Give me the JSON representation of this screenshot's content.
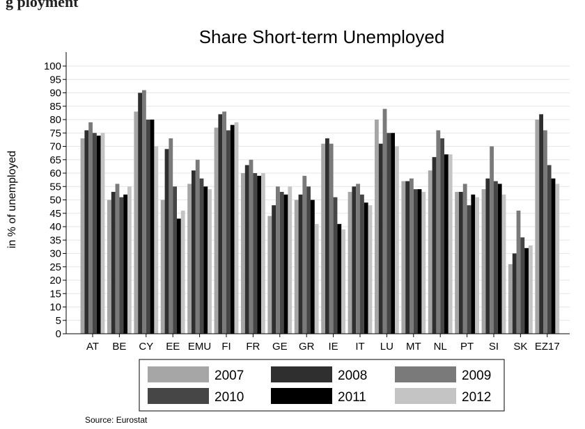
{
  "header_fragment": "g                                    ployment",
  "chart_data": {
    "type": "bar",
    "title": "Share Short-term Unemployed",
    "xlabel": "",
    "ylabel": "in % of unemployed",
    "ylim": [
      0,
      100
    ],
    "yticks": [
      0,
      5,
      10,
      15,
      20,
      25,
      30,
      35,
      40,
      45,
      50,
      55,
      60,
      65,
      70,
      75,
      80,
      85,
      90,
      95,
      100
    ],
    "grid": true,
    "legend_placement": "bottom",
    "categories": [
      "AT",
      "BE",
      "CY",
      "EE",
      "EMU",
      "FI",
      "FR",
      "GE",
      "GR",
      "IE",
      "IT",
      "LU",
      "MT",
      "NL",
      "PT",
      "SI",
      "SK",
      "EZ17"
    ],
    "series": [
      {
        "name": "2007",
        "color": "#a6a6a6",
        "values": [
          73,
          50,
          83,
          50,
          56,
          77,
          60,
          44,
          50,
          71,
          53,
          80,
          57,
          61,
          53,
          54,
          26,
          80
        ]
      },
      {
        "name": "2008",
        "color": "#2f2f2f",
        "values": [
          76,
          53,
          90,
          69,
          61,
          82,
          63,
          48,
          52,
          73,
          55,
          71,
          57,
          66,
          53,
          58,
          30,
          82
        ]
      },
      {
        "name": "2009",
        "color": "#7a7a7a",
        "values": [
          79,
          56,
          91,
          73,
          65,
          83,
          65,
          55,
          59,
          71,
          56,
          84,
          58,
          76,
          56,
          70,
          46,
          76
        ]
      },
      {
        "name": "2010",
        "color": "#464646",
        "values": [
          75,
          51,
          80,
          55,
          58,
          76,
          60,
          53,
          55,
          51,
          52,
          75,
          54,
          73,
          48,
          57,
          36,
          63
        ]
      },
      {
        "name": "2011",
        "color": "#000000",
        "values": [
          74,
          52,
          80,
          43,
          55,
          78,
          59,
          52,
          50,
          41,
          49,
          75,
          54,
          67,
          52,
          56,
          32,
          58
        ]
      },
      {
        "name": "2012",
        "color": "#c4c4c4",
        "values": [
          75,
          55,
          70,
          46,
          54,
          79,
          60,
          55,
          41,
          39,
          48,
          70,
          53,
          67,
          51,
          52,
          33,
          56
        ]
      }
    ]
  },
  "source_note": "Source: Eurostat"
}
